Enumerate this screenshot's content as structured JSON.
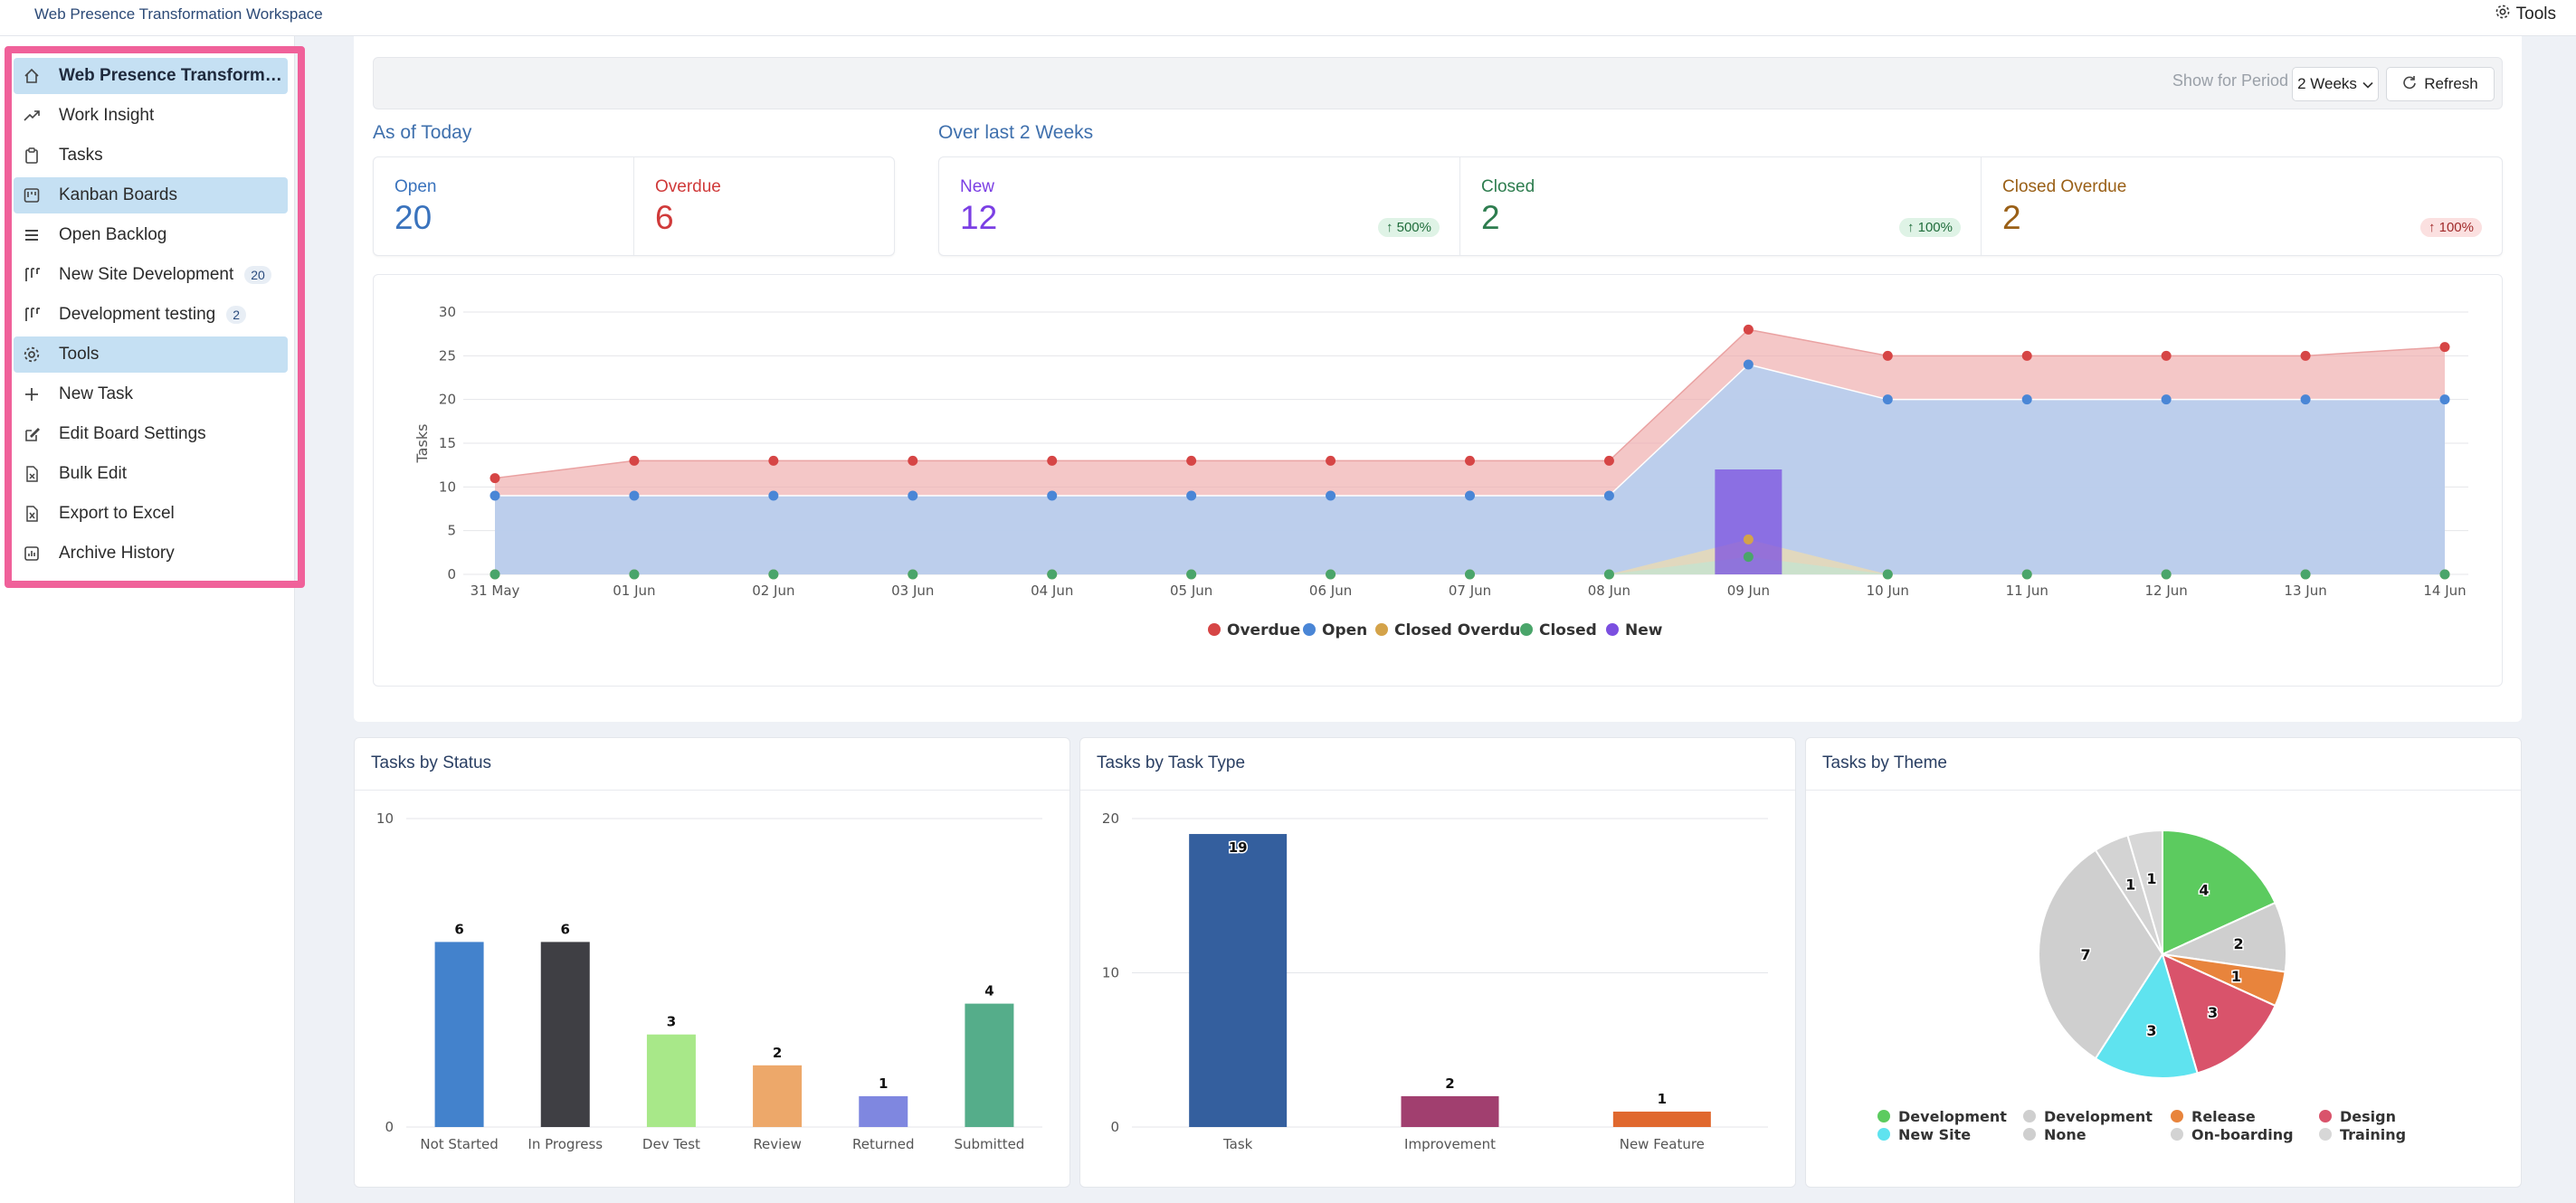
{
  "app": {
    "title": "Web Presence Transformation Workspace",
    "tools_label": "Tools"
  },
  "sidebar": {
    "items": [
      {
        "label": "Web Presence Transformation Workspace",
        "icon": "home-icon",
        "active": true,
        "bold": true
      },
      {
        "label": "Work Insight",
        "icon": "trend-icon"
      },
      {
        "label": "Tasks",
        "icon": "clipboard-icon"
      },
      {
        "label": "Kanban Boards",
        "icon": "kanban-icon",
        "active": true
      },
      {
        "label": "Open Backlog",
        "icon": "stack-icon"
      },
      {
        "label": "New Site Development",
        "icon": "board-icon",
        "badge": "20"
      },
      {
        "label": "Development testing",
        "icon": "board-icon",
        "badge": "2"
      },
      {
        "label": "Tools",
        "icon": "gear-icon",
        "active": true
      },
      {
        "label": "New Task",
        "icon": "plus-icon"
      },
      {
        "label": "Edit Board Settings",
        "icon": "edit-icon"
      },
      {
        "label": "Bulk Edit",
        "icon": "file-x-icon"
      },
      {
        "label": "Export to Excel",
        "icon": "excel-icon"
      },
      {
        "label": "Archive History",
        "icon": "chart-box-icon"
      }
    ]
  },
  "filter": {
    "period_label": "Show for Period",
    "period_value": "2 Weeks",
    "refresh_label": "Refresh"
  },
  "as_of_today": {
    "heading": "As of Today",
    "stats": [
      {
        "label": "Open",
        "value": "20",
        "color": "#3a73bd"
      },
      {
        "label": "Overdue",
        "value": "6",
        "color": "#d03a3a"
      }
    ]
  },
  "over_last": {
    "heading": "Over last 2 Weeks",
    "stats": [
      {
        "label": "New",
        "value": "12",
        "color": "#7b3fe4",
        "trend": "500%",
        "trend_style": "up-g"
      },
      {
        "label": "Closed",
        "value": "2",
        "color": "#2e7d4f",
        "trend": "100%",
        "trend_style": "up-g"
      },
      {
        "label": "Closed Overdue",
        "value": "2",
        "color": "#9a6017",
        "trend": "100%",
        "trend_style": "up-r"
      }
    ]
  },
  "chart_data": [
    {
      "type": "area",
      "ylabel": "Tasks",
      "ylim": [
        0,
        30
      ],
      "yticks": [
        0,
        5,
        10,
        15,
        20,
        25,
        30
      ],
      "x": [
        "31 May",
        "01 Jun",
        "02 Jun",
        "03 Jun",
        "04 Jun",
        "05 Jun",
        "06 Jun",
        "07 Jun",
        "08 Jun",
        "09 Jun",
        "10 Jun",
        "11 Jun",
        "12 Jun",
        "13 Jun",
        "14 Jun"
      ],
      "legend_position": "bottom",
      "series": [
        {
          "name": "Overdue",
          "color": "#d64545",
          "values": [
            11,
            13,
            13,
            13,
            13,
            13,
            13,
            13,
            13,
            28,
            25,
            25,
            25,
            25,
            26
          ]
        },
        {
          "name": "Open",
          "color": "#4a86d6",
          "values": [
            9,
            9,
            9,
            9,
            9,
            9,
            9,
            9,
            9,
            24,
            20,
            20,
            20,
            20,
            20
          ]
        },
        {
          "name": "Closed Overdue",
          "color": "#d4a34a",
          "values": [
            0,
            0,
            0,
            0,
            0,
            0,
            0,
            0,
            0,
            4,
            0,
            0,
            0,
            0,
            0
          ]
        },
        {
          "name": "Closed",
          "color": "#4aa56a",
          "values": [
            0,
            0,
            0,
            0,
            0,
            0,
            0,
            0,
            0,
            2,
            0,
            0,
            0,
            0,
            0
          ]
        },
        {
          "name": "New",
          "color": "#7b4fe0",
          "values": [
            0,
            0,
            0,
            0,
            0,
            0,
            0,
            0,
            0,
            12,
            0,
            0,
            0,
            0,
            0
          ]
        }
      ]
    },
    {
      "type": "bar",
      "title": "Tasks by Status",
      "categories": [
        "Not Started",
        "In Progress",
        "Dev Test",
        "Review",
        "Returned",
        "Submitted"
      ],
      "values": [
        6,
        6,
        3,
        2,
        1,
        4
      ],
      "colors": [
        "#4382cc",
        "#3f3f44",
        "#a8e889",
        "#eda86a",
        "#7f87e0",
        "#55ad8a"
      ],
      "ylim": [
        0,
        10
      ],
      "yticks": [
        0,
        10
      ]
    },
    {
      "type": "bar",
      "title": "Tasks by Task Type",
      "categories": [
        "Task",
        "Improvement",
        "New Feature"
      ],
      "values": [
        19,
        2,
        1
      ],
      "colors": [
        "#345f9e",
        "#a13f6f",
        "#e0682e"
      ],
      "ylim": [
        0,
        20
      ],
      "yticks": [
        0,
        10,
        20
      ]
    },
    {
      "type": "pie",
      "title": "Tasks by Theme",
      "slices": [
        {
          "label": "Development",
          "value": 4,
          "color": "#5ccb5f"
        },
        {
          "label": "Development",
          "value": 2,
          "color": "#cfcfcf"
        },
        {
          "label": "Release",
          "value": 1,
          "color": "#e8843c"
        },
        {
          "label": "Design",
          "value": 3,
          "color": "#d9536b"
        },
        {
          "label": "New Site",
          "value": 3,
          "color": "#5fe3ef"
        },
        {
          "label": "None",
          "value": 7,
          "color": "#cfcfcf"
        },
        {
          "label": "On-boarding",
          "value": 1,
          "color": "#d3d3d3"
        },
        {
          "label": "Training",
          "value": 1,
          "color": "#d7d7d7"
        }
      ]
    }
  ]
}
